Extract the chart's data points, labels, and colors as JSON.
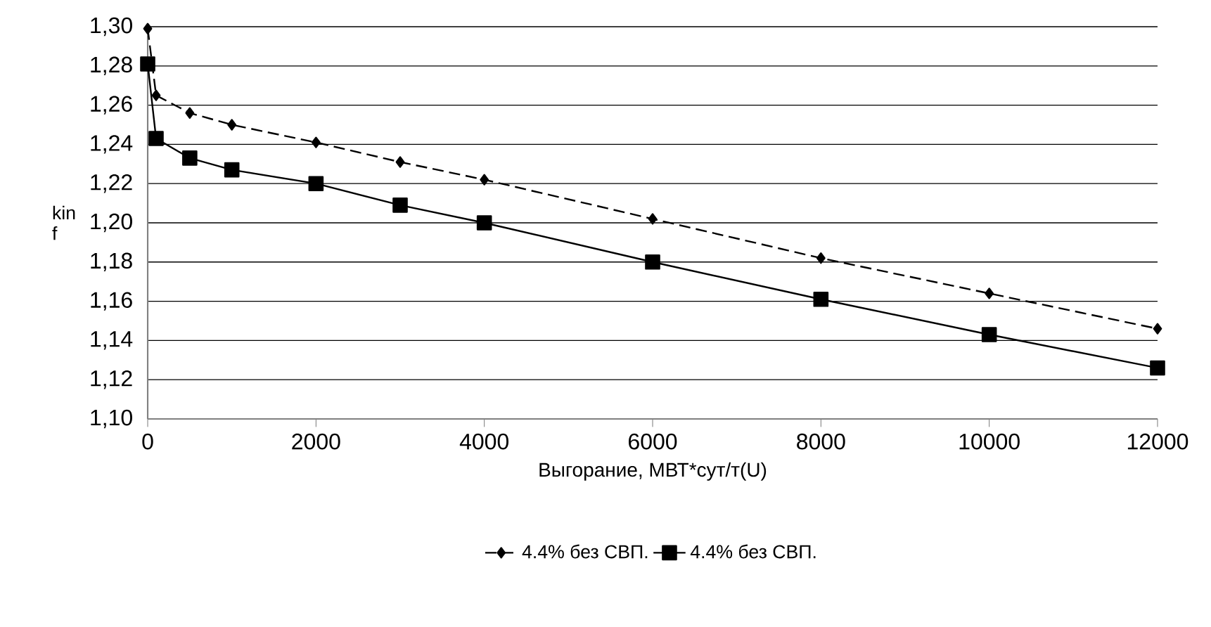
{
  "chart_data": {
    "type": "line",
    "xlabel": "Выгорание, МВТ*сут/т(U)",
    "ylabel": "kin f",
    "x": [
      0,
      100,
      500,
      1000,
      2000,
      3000,
      4000,
      6000,
      8000,
      10000,
      12000
    ],
    "series": [
      {
        "name": "4.4% без СВП.",
        "color": "#000000",
        "marker": "diamond",
        "line_style": "dashed",
        "values": [
          1.299,
          1.265,
          1.256,
          1.25,
          1.241,
          1.231,
          1.222,
          1.202,
          1.182,
          1.164,
          1.146
        ]
      },
      {
        "name": "4.4% без СВП.",
        "color": "#000000",
        "marker": "square",
        "line_style": "solid",
        "values": [
          1.281,
          1.243,
          1.233,
          1.227,
          1.22,
          1.209,
          1.2,
          1.18,
          1.161,
          1.143,
          1.126
        ]
      }
    ],
    "xlim": [
      0,
      12000
    ],
    "ylim": [
      1.1,
      1.3
    ],
    "xticks": [
      0,
      2000,
      4000,
      6000,
      8000,
      10000,
      12000
    ],
    "yticks": [
      {
        "value": 1.1,
        "label": "1,10"
      },
      {
        "value": 1.12,
        "label": "1,12"
      },
      {
        "value": 1.14,
        "label": "1,14"
      },
      {
        "value": 1.16,
        "label": "1,16"
      },
      {
        "value": 1.18,
        "label": "1,18"
      },
      {
        "value": 1.2,
        "label": "1,20"
      },
      {
        "value": 1.22,
        "label": "1,22"
      },
      {
        "value": 1.24,
        "label": "1,24"
      },
      {
        "value": 1.26,
        "label": "1,26"
      },
      {
        "value": 1.28,
        "label": "1,28"
      },
      {
        "value": 1.3,
        "label": "1,30"
      }
    ],
    "grid": "y",
    "legend": "bottom"
  }
}
